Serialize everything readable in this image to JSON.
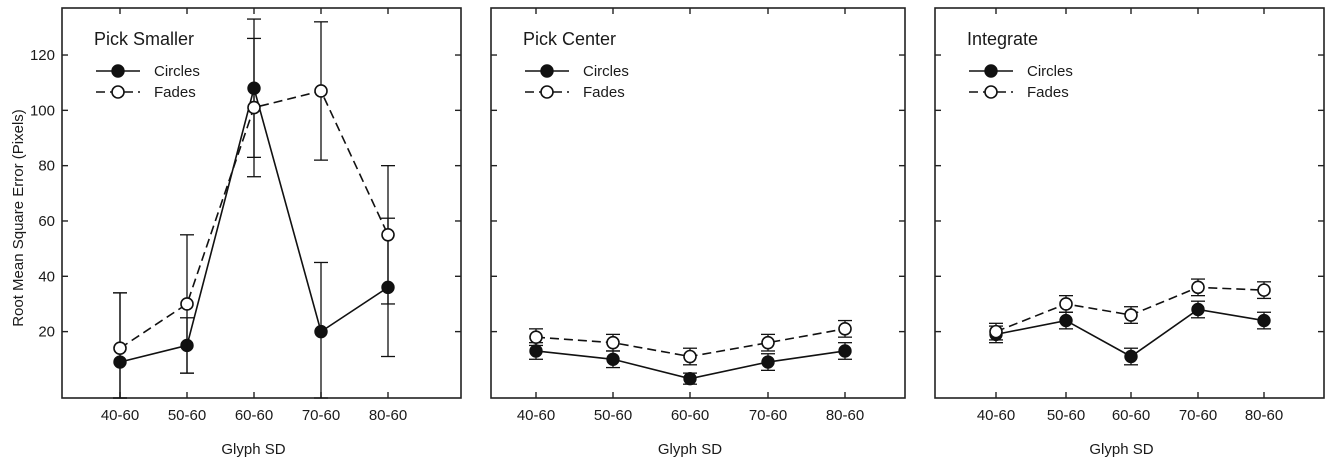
{
  "figure": {
    "ylabel": "Root Mean Square Error (Pixels)"
  },
  "chart_data": [
    {
      "type": "line",
      "title": "Pick Smaller",
      "xlabel": "Glyph SD",
      "ylabel": "Root Mean Square Error (Pixels)",
      "categories": [
        "40-60",
        "50-60",
        "60-60",
        "70-60",
        "80-60"
      ],
      "ylim": [
        -4,
        137
      ],
      "yticks": [
        20,
        40,
        60,
        80,
        100,
        120
      ],
      "grid": false,
      "legend": "top-left",
      "series": [
        {
          "name": "Circles",
          "marker": "filled",
          "line": "solid",
          "values": [
            9,
            15,
            108,
            20,
            36
          ],
          "errors": [
            25,
            10,
            25,
            25,
            25
          ]
        },
        {
          "name": "Fades",
          "marker": "open",
          "line": "dashed",
          "values": [
            14,
            30,
            101,
            107,
            55
          ],
          "errors": [
            20,
            25,
            25,
            25,
            25
          ]
        }
      ]
    },
    {
      "type": "line",
      "title": "Pick Center",
      "xlabel": "Glyph SD",
      "ylabel": "",
      "categories": [
        "40-60",
        "50-60",
        "60-60",
        "70-60",
        "80-60"
      ],
      "ylim": [
        -4,
        137
      ],
      "yticks": [
        20,
        40,
        60,
        80,
        100,
        120
      ],
      "grid": false,
      "legend": "top-left",
      "series": [
        {
          "name": "Circles",
          "marker": "filled",
          "line": "solid",
          "values": [
            13,
            10,
            3,
            9,
            13
          ],
          "errors": [
            3,
            3,
            2,
            3,
            3
          ]
        },
        {
          "name": "Fades",
          "marker": "open",
          "line": "dashed",
          "values": [
            18,
            16,
            11,
            16,
            21
          ],
          "errors": [
            3,
            3,
            3,
            3,
            3
          ]
        }
      ]
    },
    {
      "type": "line",
      "title": "Integrate",
      "xlabel": "Glyph SD",
      "ylabel": "",
      "categories": [
        "40-60",
        "50-60",
        "60-60",
        "70-60",
        "80-60"
      ],
      "ylim": [
        -4,
        137
      ],
      "yticks": [
        20,
        40,
        60,
        80,
        100,
        120
      ],
      "grid": false,
      "legend": "top-left",
      "series": [
        {
          "name": "Circles",
          "marker": "filled",
          "line": "solid",
          "values": [
            19,
            24,
            11,
            28,
            24
          ],
          "errors": [
            3,
            3,
            3,
            3,
            3
          ]
        },
        {
          "name": "Fades",
          "marker": "open",
          "line": "dashed",
          "values": [
            20,
            30,
            26,
            36,
            35
          ],
          "errors": [
            3,
            3,
            3,
            3,
            3
          ]
        }
      ]
    }
  ]
}
